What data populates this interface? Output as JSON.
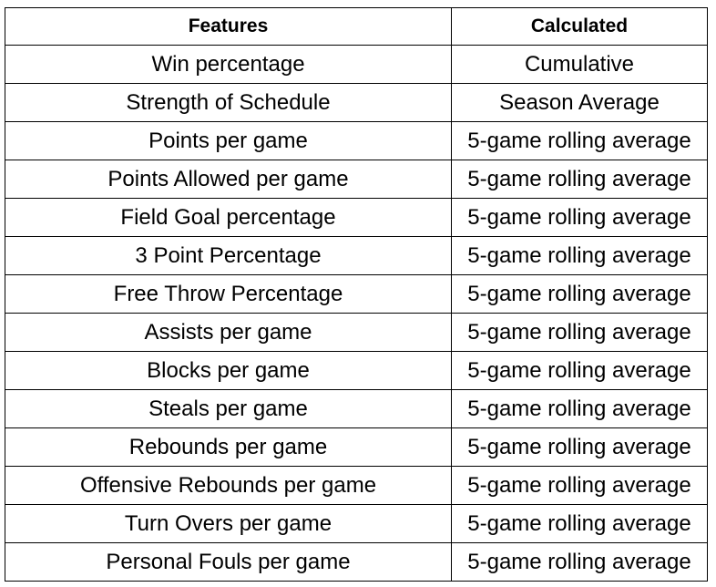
{
  "table": {
    "headers": [
      "Features",
      "Calculated"
    ],
    "rows": [
      [
        "Win percentage",
        "Cumulative"
      ],
      [
        "Strength of Schedule",
        "Season Average"
      ],
      [
        "Points per game",
        "5-game rolling average"
      ],
      [
        "Points Allowed per game",
        "5-game rolling average"
      ],
      [
        "Field Goal percentage",
        "5-game rolling average"
      ],
      [
        "3 Point Percentage",
        "5-game rolling average"
      ],
      [
        "Free Throw Percentage",
        "5-game rolling average"
      ],
      [
        "Assists per game",
        "5-game rolling average"
      ],
      [
        "Blocks per game",
        "5-game rolling average"
      ],
      [
        "Steals per game",
        "5-game rolling average"
      ],
      [
        "Rebounds per game",
        "5-game rolling average"
      ],
      [
        "Offensive Rebounds per game",
        "5-game rolling average"
      ],
      [
        "Turn Overs per game",
        "5-game rolling average"
      ],
      [
        "Personal Fouls per game",
        "5-game rolling average"
      ]
    ]
  }
}
